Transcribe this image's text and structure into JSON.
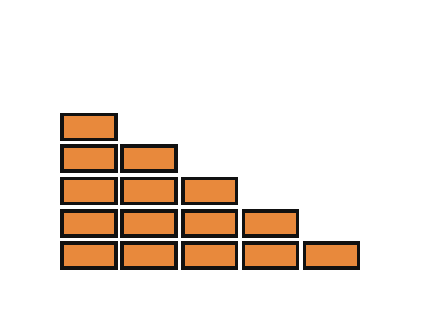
{
  "diagram": {
    "shape": "staircase-of-blocks",
    "column_heights": [
      5,
      4,
      3,
      2,
      1
    ],
    "block_fill": "#E8893C",
    "block_border": "#111111",
    "background": "#ffffff"
  }
}
